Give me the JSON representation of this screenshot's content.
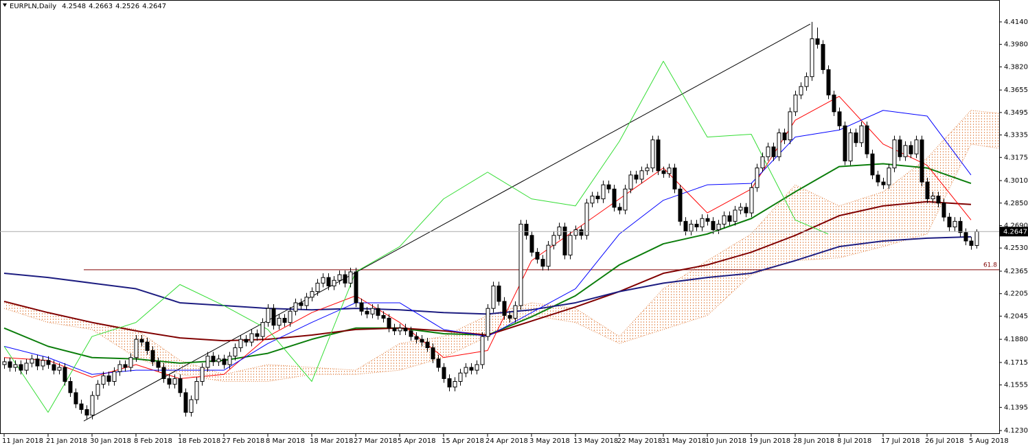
{
  "chart_data": {
    "type": "candlestick",
    "title": "EURPLN,Daily",
    "categories": [
      "11 Jan 2018",
      null,
      null,
      null,
      null,
      null,
      null,
      null,
      "21 Jan 2018",
      null,
      null,
      null,
      null,
      null,
      null,
      null,
      "30 Jan 2018",
      null,
      null,
      null,
      null,
      null,
      null,
      null,
      "8 Feb 2018",
      null,
      null,
      null,
      null,
      null,
      null,
      null,
      "18 Feb 2018",
      null,
      null,
      null,
      null,
      null,
      null,
      null,
      "27 Feb 2018",
      null,
      null,
      null,
      null,
      null,
      null,
      null,
      "8 Mar 2018",
      null,
      null,
      null,
      null,
      null,
      null,
      null,
      "18 Mar 2018",
      null,
      null,
      null,
      null,
      null,
      null,
      null,
      "27 Mar 2018",
      null,
      null,
      null,
      null,
      null,
      null,
      null,
      "5 Apr 2018",
      null,
      null,
      null,
      null,
      null,
      null,
      null,
      "15 Apr 2018",
      null,
      null,
      null,
      null,
      null,
      null,
      null,
      "24 Apr 2018",
      null,
      null,
      null,
      null,
      null,
      null,
      null,
      "3 May 2018",
      null,
      null,
      null,
      null,
      null,
      null,
      null,
      "13 May 2018",
      null,
      null,
      null,
      null,
      null,
      null,
      null,
      "22 May 2018",
      null,
      null,
      null,
      null,
      null,
      null,
      null,
      "31 May 2018",
      null,
      null,
      null,
      null,
      null,
      null,
      null,
      "10 Jun 2018",
      null,
      null,
      null,
      null,
      null,
      null,
      null,
      "19 Jun 2018",
      null,
      null,
      null,
      null,
      null,
      null,
      null,
      "28 Jun 2018",
      null,
      null,
      null,
      null,
      null,
      null,
      null,
      "8 Jul 2018",
      null,
      null,
      null,
      null,
      null,
      null,
      null,
      "17 Jul 2018",
      null,
      null,
      null,
      null,
      null,
      null,
      null,
      "26 Jul 2018",
      null,
      null,
      null,
      null,
      null,
      null,
      null,
      "5 Aug 2018",
      null
    ],
    "open": [
      4.17,
      4.172,
      4.168,
      4.17,
      4.166,
      4.171,
      4.174,
      4.169,
      4.173,
      4.17,
      4.166,
      4.168,
      4.158,
      4.15,
      4.142,
      4.138,
      4.134,
      4.148,
      4.156,
      4.162,
      4.158,
      4.165,
      4.17,
      4.168,
      4.175,
      4.188,
      4.186,
      4.18,
      4.172,
      4.168,
      4.16,
      4.156,
      4.16,
      4.15,
      4.136,
      4.145,
      4.158,
      4.168,
      4.176,
      4.172,
      4.174,
      4.17,
      4.176,
      4.182,
      4.188,
      4.186,
      4.192,
      4.19,
      4.2,
      4.21,
      4.198,
      4.203,
      4.2,
      4.208,
      4.214,
      4.212,
      4.218,
      4.222,
      4.228,
      4.232,
      4.226,
      4.23,
      4.234,
      4.228,
      4.236,
      4.214,
      4.208,
      4.206,
      4.21,
      4.205,
      4.203,
      4.196,
      4.194,
      4.196,
      4.194,
      4.19,
      4.188,
      4.186,
      4.182,
      4.174,
      4.168,
      4.16,
      4.154,
      4.158,
      4.164,
      4.168,
      4.166,
      4.17,
      4.19,
      4.21,
      4.226,
      4.215,
      4.205,
      4.203,
      4.212,
      4.27,
      4.262,
      4.25,
      4.245,
      4.24,
      4.255,
      4.262,
      4.268,
      4.248,
      4.262,
      4.266,
      4.262,
      4.285,
      4.29,
      4.288,
      4.298,
      4.295,
      4.282,
      4.28,
      4.295,
      4.305,
      4.302,
      4.308,
      4.31,
      4.33,
      4.308,
      4.306,
      4.31,
      4.295,
      4.272,
      4.265,
      4.27,
      4.268,
      4.274,
      4.272,
      4.266,
      4.27,
      4.276,
      4.272,
      4.28,
      4.282,
      4.278,
      4.296,
      4.31,
      4.318,
      4.325,
      4.318,
      4.335,
      4.33,
      4.35,
      4.362,
      4.368,
      4.375,
      4.402,
      4.398,
      4.38,
      4.362,
      4.35,
      4.34,
      4.315,
      4.335,
      4.328,
      4.34,
      4.32,
      4.305,
      4.3,
      4.298,
      4.31,
      4.33,
      4.318,
      4.326,
      4.32,
      4.33,
      4.3,
      4.288,
      4.29,
      4.285,
      4.275,
      4.268,
      4.272,
      4.264,
      4.258,
      4.2548
    ],
    "high": [
      4.175,
      4.175,
      4.173,
      4.173,
      4.174,
      4.177,
      4.177,
      4.176,
      4.176,
      4.173,
      4.171,
      4.171,
      4.161,
      4.153,
      4.145,
      4.141,
      4.151,
      4.159,
      4.165,
      4.165,
      4.168,
      4.173,
      4.173,
      4.178,
      4.191,
      4.191,
      4.189,
      4.183,
      4.175,
      4.171,
      4.163,
      4.163,
      4.163,
      4.153,
      4.148,
      4.161,
      4.171,
      4.179,
      4.179,
      4.177,
      4.177,
      4.179,
      4.185,
      4.191,
      4.191,
      4.195,
      4.195,
      4.203,
      4.213,
      4.213,
      4.206,
      4.206,
      4.211,
      4.217,
      4.217,
      4.221,
      4.225,
      4.231,
      4.235,
      4.235,
      4.233,
      4.237,
      4.237,
      4.239,
      4.239,
      4.217,
      4.211,
      4.213,
      4.213,
      4.208,
      4.206,
      4.199,
      4.199,
      4.199,
      4.197,
      4.193,
      4.191,
      4.189,
      4.185,
      4.177,
      4.171,
      4.163,
      4.161,
      4.167,
      4.171,
      4.171,
      4.173,
      4.193,
      4.213,
      4.229,
      4.229,
      4.218,
      4.208,
      4.215,
      4.273,
      4.273,
      4.265,
      4.253,
      4.248,
      4.258,
      4.265,
      4.271,
      4.271,
      4.265,
      4.269,
      4.269,
      4.288,
      4.293,
      4.293,
      4.301,
      4.301,
      4.298,
      4.285,
      4.298,
      4.308,
      4.308,
      4.311,
      4.313,
      4.333,
      4.333,
      4.311,
      4.313,
      4.313,
      4.298,
      4.275,
      4.273,
      4.273,
      4.277,
      4.277,
      4.275,
      4.273,
      4.279,
      4.279,
      4.283,
      4.285,
      4.285,
      4.299,
      4.313,
      4.321,
      4.328,
      4.328,
      4.338,
      4.338,
      4.353,
      4.365,
      4.371,
      4.378,
      4.414,
      4.41,
      4.401,
      4.383,
      4.365,
      4.353,
      4.343,
      4.338,
      4.338,
      4.343,
      4.343,
      4.323,
      4.308,
      4.303,
      4.313,
      4.333,
      4.333,
      4.329,
      4.329,
      4.333,
      4.333,
      4.303,
      4.293,
      4.293,
      4.288,
      4.278,
      4.275,
      4.275,
      4.267,
      4.261,
      4.2663
    ],
    "low": [
      4.167,
      4.165,
      4.165,
      4.163,
      4.163,
      4.168,
      4.166,
      4.166,
      4.167,
      4.163,
      4.163,
      4.155,
      4.147,
      4.139,
      4.135,
      4.131,
      4.131,
      4.145,
      4.153,
      4.155,
      4.155,
      4.162,
      4.165,
      4.165,
      4.172,
      4.183,
      4.177,
      4.169,
      4.165,
      4.157,
      4.153,
      4.153,
      4.147,
      4.133,
      4.133,
      4.142,
      4.155,
      4.165,
      4.169,
      4.169,
      4.167,
      4.167,
      4.173,
      4.179,
      4.183,
      4.183,
      4.187,
      4.187,
      4.197,
      4.195,
      4.195,
      4.197,
      4.197,
      4.205,
      4.209,
      4.209,
      4.215,
      4.219,
      4.225,
      4.223,
      4.223,
      4.227,
      4.225,
      4.225,
      4.211,
      4.205,
      4.203,
      4.203,
      4.202,
      4.2,
      4.193,
      4.191,
      4.191,
      4.191,
      4.187,
      4.185,
      4.183,
      4.179,
      4.171,
      4.165,
      4.157,
      4.151,
      4.151,
      4.155,
      4.161,
      4.163,
      4.163,
      4.167,
      4.187,
      4.207,
      4.212,
      4.202,
      4.2,
      4.2,
      4.209,
      4.259,
      4.247,
      4.242,
      4.237,
      4.237,
      4.252,
      4.259,
      4.245,
      4.245,
      4.259,
      4.259,
      4.259,
      4.282,
      4.285,
      4.285,
      4.292,
      4.279,
      4.277,
      4.277,
      4.292,
      4.299,
      4.299,
      4.305,
      4.307,
      4.305,
      4.303,
      4.303,
      4.292,
      4.269,
      4.262,
      4.262,
      4.265,
      4.265,
      4.269,
      4.263,
      4.263,
      4.267,
      4.269,
      4.269,
      4.277,
      4.275,
      4.275,
      4.293,
      4.307,
      4.315,
      4.315,
      4.315,
      4.327,
      4.327,
      4.347,
      4.359,
      4.365,
      4.372,
      4.395,
      4.377,
      4.359,
      4.347,
      4.337,
      4.312,
      4.312,
      4.325,
      4.325,
      4.317,
      4.302,
      4.297,
      4.295,
      4.295,
      4.307,
      4.315,
      4.315,
      4.317,
      4.317,
      4.297,
      4.285,
      4.285,
      4.282,
      4.272,
      4.265,
      4.265,
      4.261,
      4.255,
      4.2518,
      4.2526
    ],
    "close": [
      4.172,
      4.168,
      4.17,
      4.166,
      4.171,
      4.174,
      4.169,
      4.173,
      4.17,
      4.166,
      4.168,
      4.158,
      4.15,
      4.142,
      4.138,
      4.134,
      4.148,
      4.156,
      4.162,
      4.158,
      4.165,
      4.17,
      4.168,
      4.175,
      4.188,
      4.186,
      4.18,
      4.172,
      4.168,
      4.16,
      4.156,
      4.16,
      4.15,
      4.136,
      4.145,
      4.158,
      4.168,
      4.176,
      4.172,
      4.174,
      4.17,
      4.176,
      4.182,
      4.188,
      4.186,
      4.192,
      4.19,
      4.2,
      4.21,
      4.198,
      4.203,
      4.2,
      4.208,
      4.214,
      4.212,
      4.218,
      4.222,
      4.228,
      4.232,
      4.226,
      4.23,
      4.234,
      4.228,
      4.236,
      4.214,
      4.208,
      4.206,
      4.21,
      4.205,
      4.203,
      4.196,
      4.194,
      4.196,
      4.194,
      4.19,
      4.188,
      4.186,
      4.182,
      4.174,
      4.168,
      4.16,
      4.154,
      4.158,
      4.164,
      4.168,
      4.166,
      4.17,
      4.19,
      4.21,
      4.226,
      4.215,
      4.205,
      4.203,
      4.212,
      4.27,
      4.262,
      4.25,
      4.245,
      4.24,
      4.255,
      4.262,
      4.268,
      4.248,
      4.262,
      4.266,
      4.262,
      4.285,
      4.29,
      4.288,
      4.298,
      4.295,
      4.282,
      4.28,
      4.295,
      4.305,
      4.302,
      4.308,
      4.31,
      4.33,
      4.308,
      4.306,
      4.31,
      4.295,
      4.272,
      4.265,
      4.27,
      4.268,
      4.274,
      4.272,
      4.266,
      4.27,
      4.276,
      4.272,
      4.28,
      4.282,
      4.278,
      4.296,
      4.31,
      4.318,
      4.325,
      4.318,
      4.335,
      4.33,
      4.35,
      4.362,
      4.368,
      4.375,
      4.402,
      4.398,
      4.38,
      4.362,
      4.35,
      4.34,
      4.315,
      4.335,
      4.328,
      4.34,
      4.32,
      4.305,
      4.3,
      4.298,
      4.31,
      4.33,
      4.318,
      4.326,
      4.32,
      4.33,
      4.3,
      4.288,
      4.29,
      4.285,
      4.275,
      4.268,
      4.272,
      4.264,
      4.258,
      4.2548,
      4.2647
    ],
    "lines": [
      {
        "color": "#0b7d0b",
        "width": 2,
        "x": [
          0,
          8,
          16,
          24,
          32,
          40,
          48,
          56,
          64,
          72,
          80,
          88,
          96,
          104,
          112,
          120,
          128,
          136,
          144,
          152,
          160,
          168,
          176
        ],
        "values": [
          4.196,
          4.183,
          4.175,
          4.174,
          4.171,
          4.173,
          4.178,
          4.188,
          4.196,
          4.196,
          4.192,
          4.191,
          4.204,
          4.219,
          4.241,
          4.256,
          4.263,
          4.274,
          4.293,
          4.311,
          4.313,
          4.31,
          4.299
        ]
      },
      {
        "color": "#800000",
        "width": 2,
        "x": [
          0,
          8,
          16,
          24,
          32,
          40,
          48,
          56,
          64,
          72,
          80,
          88,
          96,
          104,
          112,
          120,
          128,
          136,
          144,
          152,
          160,
          168,
          176
        ],
        "values": [
          4.215,
          4.207,
          4.2,
          4.194,
          4.189,
          4.187,
          4.188,
          4.191,
          4.195,
          4.196,
          4.194,
          4.191,
          4.201,
          4.211,
          4.222,
          4.235,
          4.241,
          4.25,
          4.262,
          4.276,
          4.283,
          4.286,
          4.284
        ]
      },
      {
        "color": "#1c1c80",
        "width": 2,
        "x": [
          0,
          8,
          16,
          24,
          32,
          40,
          48,
          56,
          64,
          72,
          80,
          88,
          96,
          104,
          112,
          120,
          128,
          136,
          144,
          152,
          160,
          168,
          176
        ],
        "values": [
          4.235,
          4.232,
          4.228,
          4.224,
          4.214,
          4.212,
          4.21,
          4.209,
          4.21,
          4.209,
          4.207,
          4.206,
          4.209,
          4.214,
          4.222,
          4.228,
          4.232,
          4.235,
          4.244,
          4.254,
          4.258,
          4.26,
          4.261
        ]
      },
      {
        "color": "#ff0000",
        "width": 1,
        "x": [
          0,
          8,
          16,
          24,
          32,
          40,
          48,
          56,
          64,
          72,
          80,
          88,
          96,
          104,
          112,
          120,
          128,
          136,
          144,
          152,
          160,
          168,
          176
        ],
        "values": [
          4.175,
          4.173,
          4.161,
          4.17,
          4.16,
          4.163,
          4.19,
          4.207,
          4.219,
          4.2,
          4.175,
          4.18,
          4.244,
          4.266,
          4.288,
          4.31,
          4.278,
          4.295,
          4.344,
          4.361,
          4.327,
          4.312,
          4.273
        ]
      },
      {
        "color": "#0000ff",
        "width": 1,
        "x": [
          0,
          8,
          16,
          24,
          32,
          40,
          48,
          56,
          64,
          72,
          80,
          88,
          96,
          104,
          112,
          120,
          128,
          136,
          144,
          152,
          160,
          168,
          176
        ],
        "values": [
          4.183,
          4.175,
          4.163,
          4.166,
          4.166,
          4.166,
          4.185,
          4.2,
          4.214,
          4.214,
          4.195,
          4.19,
          4.207,
          4.224,
          4.263,
          4.287,
          4.298,
          4.299,
          4.332,
          4.337,
          4.351,
          4.347,
          4.305
        ]
      },
      {
        "color": "#33dd33",
        "width": 1,
        "x": [
          0,
          8,
          16,
          24,
          32,
          40,
          48,
          56,
          64,
          72,
          80,
          88,
          96,
          104,
          112,
          120,
          128,
          136,
          144,
          150
        ],
        "values": [
          4.183,
          4.136,
          4.19,
          4.2,
          4.227,
          4.212,
          4.195,
          4.158,
          4.236,
          4.254,
          4.288,
          4.307,
          4.288,
          4.283,
          4.329,
          4.386,
          4.332,
          4.334,
          4.273,
          4.263
        ]
      }
    ],
    "cloud": {
      "color": "#e07b39",
      "x": [
        0,
        8,
        16,
        24,
        32,
        40,
        48,
        56,
        64,
        72,
        80,
        88,
        96,
        104,
        112,
        120,
        128,
        136,
        144,
        152,
        160,
        168,
        176,
        181
      ],
      "span_a": [
        4.214,
        4.207,
        4.2,
        4.195,
        4.173,
        4.163,
        4.17,
        4.168,
        4.166,
        4.185,
        4.19,
        4.205,
        4.214,
        4.21,
        4.19,
        4.224,
        4.244,
        4.263,
        4.298,
        4.283,
        4.293,
        4.317,
        4.351,
        4.349
      ],
      "span_b": [
        4.21,
        4.2,
        4.195,
        4.175,
        4.163,
        4.158,
        4.158,
        4.163,
        4.163,
        4.166,
        4.175,
        4.19,
        4.205,
        4.2,
        4.185,
        4.195,
        4.205,
        4.234,
        4.244,
        4.246,
        4.254,
        4.263,
        4.327,
        4.324
      ]
    },
    "trendline": {
      "color": "#000000",
      "x": [
        14.5,
        146.75
      ],
      "values": [
        4.1298,
        4.4125
      ]
    },
    "hline": {
      "label": "61.8",
      "value": 4.2375,
      "x": 14.5,
      "color": "#800000"
    },
    "ylim": [
      4.1206,
      4.4296
    ],
    "yticks": [
      {
        "value": 4.414,
        "label": "4.4140"
      },
      {
        "value": 4.398,
        "label": "4.3980"
      },
      {
        "value": 4.382,
        "label": "4.3820"
      },
      4.3655,
      4.3495,
      4.3335,
      4.3175,
      {
        "value": 4.301,
        "label": "4.3010"
      },
      {
        "value": 4.285,
        "label": "4.2850"
      },
      {
        "value": 4.269,
        "label": "4.2690"
      },
      {
        "value": 4.253,
        "label": "4.2530"
      },
      4.2365,
      4.2205,
      4.2045,
      {
        "value": 4.188,
        "label": "4.1880"
      },
      4.1715,
      4.1555,
      4.1395,
      {
        "value": 4.123,
        "label": "4.1230"
      }
    ]
  }
}
